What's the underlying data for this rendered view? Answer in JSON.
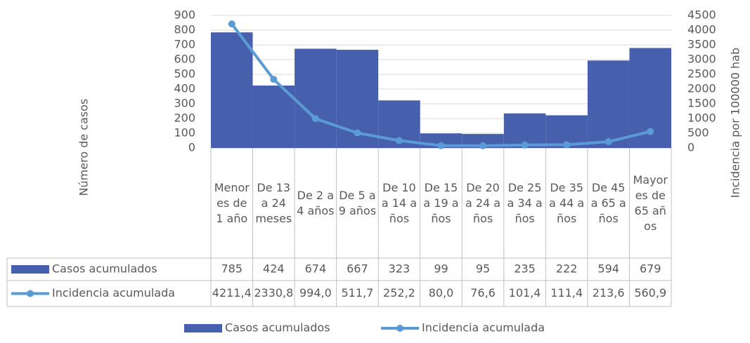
{
  "chart_data": {
    "type": "bar-line-table",
    "y_label": "Número de casos",
    "y2_label": "Incidencia por 100000 hab",
    "categories": [
      "Menores de 1 año",
      "De 13 a 24 meses",
      "De 2 a 4 años",
      "De 5 a 9 años",
      "De 10 a 14 años",
      "De 15 a 19 años",
      "De 20 a 24 años",
      "De 25 a 34 años",
      "De 35 a 44 años",
      "De 45 a 65 años",
      "Mayores de 65 años"
    ],
    "series": [
      {
        "name": "Casos acumulados",
        "type": "bar",
        "color": "#4660ad",
        "values": [
          785,
          424,
          674,
          667,
          323,
          99,
          95,
          235,
          222,
          594,
          679
        ]
      },
      {
        "name": "Incidencia acumulada",
        "type": "line",
        "axis": "y2",
        "color": "#5b9bd5",
        "values": [
          4211.4,
          2330.8,
          994.0,
          511.7,
          252.2,
          80.0,
          76.6,
          101.4,
          111.4,
          213.6,
          560.9
        ],
        "value_labels": [
          "4211,4",
          "2330,8",
          "994,0",
          "511,7",
          "252,2",
          "80,0",
          "76,6",
          "101,4",
          "111,4",
          "213,6",
          "560,9"
        ]
      }
    ],
    "ylim": [
      0,
      900
    ],
    "yticks": [
      0,
      100,
      200,
      300,
      400,
      500,
      600,
      700,
      800,
      900
    ],
    "y2lim": [
      0,
      4500
    ],
    "y2ticks": [
      0,
      500,
      1000,
      1500,
      2000,
      2500,
      3000,
      3500,
      4000,
      4500
    ],
    "grid": true
  }
}
